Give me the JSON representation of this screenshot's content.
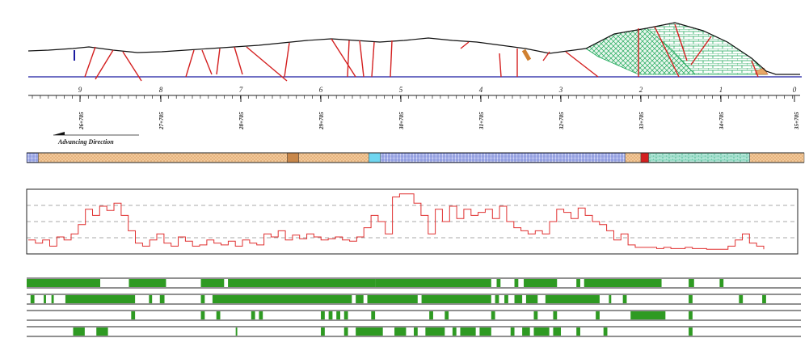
{
  "section_numbers": [
    "9",
    "8",
    "7",
    "6",
    "5",
    "4",
    "3",
    "2",
    "1",
    "0"
  ],
  "chainages": [
    "26+705",
    "27+705",
    "28+705",
    "29+705",
    "30+705",
    "31+705",
    "32+705",
    "33+705",
    "34+705",
    "35+705"
  ],
  "direction_label": "Advancing  Direction",
  "colors": {
    "ground_line": "#111111",
    "tunnel_line": "#1a1aa0",
    "fault": "#d42020",
    "limestone_fill": "#1fa85a",
    "sandstone_fill": "#e8a868",
    "schist_fill": "#3a4fc0",
    "parameter_line": "#e03030",
    "bar_fill": "#2e9a22",
    "grid": "#222222"
  },
  "geology_strip": [
    {
      "from": 0.0,
      "to": 0.015,
      "unit": "schist"
    },
    {
      "from": 0.015,
      "to": 0.335,
      "unit": "sandstone"
    },
    {
      "from": 0.335,
      "to": 0.35,
      "unit": "sandstone-dark"
    },
    {
      "from": 0.35,
      "to": 0.44,
      "unit": "sandstone"
    },
    {
      "from": 0.44,
      "to": 0.455,
      "unit": "cyan"
    },
    {
      "from": 0.455,
      "to": 0.77,
      "unit": "schist"
    },
    {
      "from": 0.77,
      "to": 0.79,
      "unit": "sandstone"
    },
    {
      "from": 0.79,
      "to": 0.8,
      "unit": "red"
    },
    {
      "from": 0.8,
      "to": 0.93,
      "unit": "limestone"
    },
    {
      "from": 0.93,
      "to": 1.0,
      "unit": "sandstone"
    }
  ],
  "parameter_profile": [
    0.2,
    0.15,
    0.2,
    0.1,
    0.25,
    0.2,
    0.3,
    0.45,
    0.7,
    0.6,
    0.75,
    0.68,
    0.8,
    0.6,
    0.35,
    0.15,
    0.1,
    0.2,
    0.3,
    0.15,
    0.1,
    0.25,
    0.18,
    0.1,
    0.12,
    0.2,
    0.15,
    0.12,
    0.18,
    0.1,
    0.2,
    0.15,
    0.12,
    0.3,
    0.25,
    0.35,
    0.2,
    0.28,
    0.22,
    0.3,
    0.25,
    0.2,
    0.22,
    0.25,
    0.2,
    0.18,
    0.25,
    0.4,
    0.6,
    0.5,
    0.3,
    0.9,
    0.95,
    0.95,
    0.8,
    0.6,
    0.3,
    0.7,
    0.5,
    0.75,
    0.55,
    0.7,
    0.6,
    0.65,
    0.7,
    0.55,
    0.75,
    0.5,
    0.4,
    0.35,
    0.3,
    0.35,
    0.3,
    0.5,
    0.7,
    0.65,
    0.55,
    0.72,
    0.6,
    0.5,
    0.45,
    0.35,
    0.2,
    0.3,
    0.12,
    0.08,
    0.08,
    0.08,
    0.06,
    0.08,
    0.06,
    0.06,
    0.08,
    0.06,
    0.06,
    0.05,
    0.05,
    0.05,
    0.1,
    0.2,
    0.3,
    0.15,
    0.1,
    0.05
  ],
  "bar_tracks": [
    [
      [
        0.0,
        0.095
      ],
      [
        0.132,
        0.18
      ],
      [
        0.225,
        0.255
      ],
      [
        0.26,
        0.45
      ],
      [
        0.45,
        0.6
      ],
      [
        0.607,
        0.612
      ],
      [
        0.63,
        0.635
      ],
      [
        0.642,
        0.685
      ],
      [
        0.71,
        0.715
      ],
      [
        0.72,
        0.82
      ],
      [
        0.855,
        0.862
      ],
      [
        0.895,
        0.9
      ]
    ],
    [
      [
        0.005,
        0.01
      ],
      [
        0.022,
        0.025
      ],
      [
        0.032,
        0.035
      ],
      [
        0.05,
        0.14
      ],
      [
        0.158,
        0.162
      ],
      [
        0.172,
        0.178
      ],
      [
        0.225,
        0.23
      ],
      [
        0.24,
        0.42
      ],
      [
        0.425,
        0.435
      ],
      [
        0.44,
        0.505
      ],
      [
        0.51,
        0.6
      ],
      [
        0.605,
        0.61
      ],
      [
        0.617,
        0.622
      ],
      [
        0.63,
        0.64
      ],
      [
        0.645,
        0.66
      ],
      [
        0.67,
        0.74
      ],
      [
        0.752,
        0.755
      ],
      [
        0.77,
        0.775
      ],
      [
        0.855,
        0.86
      ],
      [
        0.92,
        0.925
      ],
      [
        0.95,
        0.955
      ]
    ],
    [
      [
        0.135,
        0.14
      ],
      [
        0.225,
        0.23
      ],
      [
        0.245,
        0.25
      ],
      [
        0.29,
        0.295
      ],
      [
        0.3,
        0.305
      ],
      [
        0.38,
        0.385
      ],
      [
        0.39,
        0.395
      ],
      [
        0.4,
        0.405
      ],
      [
        0.41,
        0.415
      ],
      [
        0.445,
        0.45
      ],
      [
        0.52,
        0.525
      ],
      [
        0.54,
        0.545
      ],
      [
        0.6,
        0.605
      ],
      [
        0.655,
        0.66
      ],
      [
        0.68,
        0.685
      ],
      [
        0.735,
        0.74
      ],
      [
        0.78,
        0.825
      ],
      [
        0.855,
        0.86
      ]
    ],
    [
      [
        0.06,
        0.075
      ],
      [
        0.09,
        0.105
      ],
      [
        0.27,
        0.272
      ],
      [
        0.38,
        0.385
      ],
      [
        0.41,
        0.415
      ],
      [
        0.425,
        0.46
      ],
      [
        0.475,
        0.49
      ],
      [
        0.5,
        0.505
      ],
      [
        0.515,
        0.54
      ],
      [
        0.55,
        0.555
      ],
      [
        0.56,
        0.58
      ],
      [
        0.585,
        0.6
      ],
      [
        0.625,
        0.63
      ],
      [
        0.64,
        0.65
      ],
      [
        0.655,
        0.675
      ],
      [
        0.68,
        0.69
      ],
      [
        0.71,
        0.715
      ],
      [
        0.745,
        0.75
      ],
      [
        0.855,
        0.86
      ]
    ]
  ]
}
